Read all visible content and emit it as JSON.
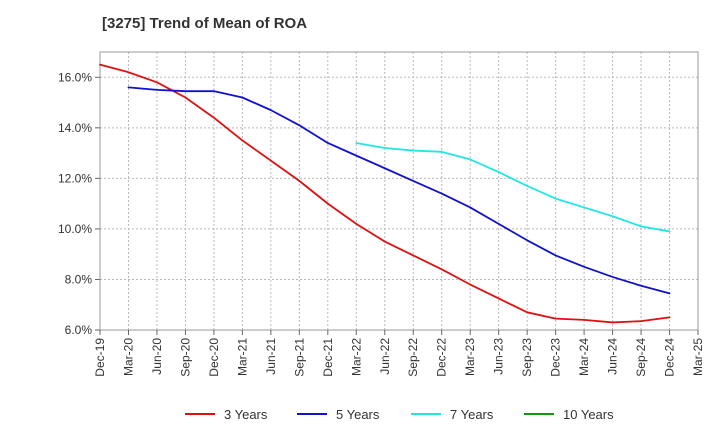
{
  "chart_data": {
    "type": "line",
    "title": "[3275]  Trend of Mean of ROA",
    "xlabel": "",
    "ylabel": "",
    "ylim": [
      6.0,
      17.0
    ],
    "y_ticks": [
      "6.0%",
      "8.0%",
      "10.0%",
      "12.0%",
      "14.0%",
      "16.0%"
    ],
    "y_tick_values": [
      6,
      8,
      10,
      12,
      14,
      16
    ],
    "x_tick_labels": [
      "Dec-19",
      "Mar-20",
      "Jun-20",
      "Sep-20",
      "Dec-20",
      "Mar-21",
      "Jun-21",
      "Sep-21",
      "Dec-21",
      "Mar-22",
      "Jun-22",
      "Sep-22",
      "Dec-22",
      "Mar-23",
      "Jun-23",
      "Sep-23",
      "Dec-23",
      "Mar-24",
      "Jun-24",
      "Sep-24",
      "Dec-24",
      "Mar-25"
    ],
    "grid": true,
    "legend_position": "bottom",
    "series": [
      {
        "name": "3 Years",
        "color": "#dd1111",
        "start_index": 0,
        "values": [
          16.5,
          16.2,
          15.8,
          15.2,
          14.4,
          13.5,
          12.7,
          11.9,
          11.0,
          10.2,
          9.5,
          8.95,
          8.4,
          7.8,
          7.25,
          6.7,
          6.45,
          6.4,
          6.3,
          6.35,
          6.5
        ]
      },
      {
        "name": "5 Years",
        "color": "#1111cc",
        "start_index": 1,
        "values": [
          15.6,
          15.5,
          15.45,
          15.45,
          15.2,
          14.7,
          14.1,
          13.4,
          12.9,
          12.4,
          11.9,
          11.4,
          10.85,
          10.2,
          9.55,
          8.95,
          8.5,
          8.1,
          7.75,
          7.45
        ]
      },
      {
        "name": "7 Years",
        "color": "#22e6e6",
        "start_index": 9,
        "values": [
          13.4,
          13.2,
          13.1,
          13.05,
          12.75,
          12.25,
          11.7,
          11.2,
          10.85,
          10.5,
          10.1,
          9.9
        ]
      },
      {
        "name": "10 Years",
        "color": "#119911",
        "start_index": 0,
        "values": []
      }
    ]
  }
}
